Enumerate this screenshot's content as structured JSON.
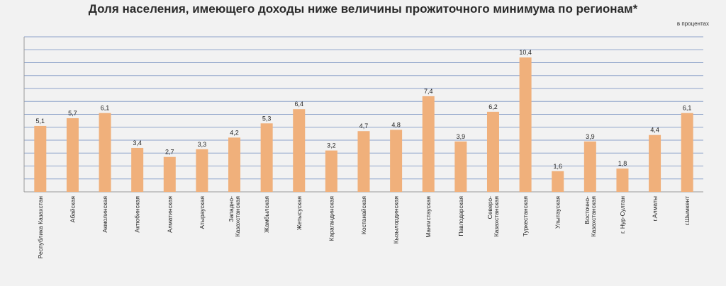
{
  "chart_data": {
    "type": "bar",
    "title": "Доля населения, имеющего доходы ниже величины прожиточного минимума по регионам*",
    "unit_note": "в процентах",
    "categories": [
      "Республика Казахстан",
      "Абайская",
      "Акмолинская",
      "Актюбинская",
      "Алматинская",
      "Атырауская",
      "Западно-Казахстанская",
      "Жамбылская",
      "Жетысуская",
      "Карагандинская",
      "Костанайская",
      "Кызылординская",
      "Мангистауская",
      "Павлодарская",
      "Северо-Казахстанская",
      "Туркестанская",
      "Улытауская",
      "Восточно-Казахстанская",
      "г.Нур-Султан",
      "г.Алматы",
      "г.Шымкент"
    ],
    "values": [
      5.1,
      5.7,
      6.1,
      3.4,
      2.7,
      3.3,
      4.2,
      5.3,
      6.4,
      3.2,
      4.7,
      4.8,
      7.4,
      3.9,
      6.2,
      10.4,
      1.6,
      3.9,
      1.8,
      4.4,
      6.1
    ],
    "value_labels": [
      "5,1",
      "5,7",
      "6,1",
      "3,4",
      "2,7",
      "3,3",
      "4,2",
      "5,3",
      "6,4",
      "3,2",
      "4,7",
      "4,8",
      "7,4",
      "3,9",
      "6,2",
      "10,4",
      "1,6",
      "3,9",
      "1,8",
      "4,4",
      "6,1"
    ],
    "category_labels": [
      [
        "Республика Казахстан"
      ],
      [
        "Абайская"
      ],
      [
        "Акмолинская"
      ],
      [
        "Актюбинская"
      ],
      [
        "Алматинская"
      ],
      [
        "Атырауская"
      ],
      [
        "Западно-",
        "Казахстанская"
      ],
      [
        "Жамбылская"
      ],
      [
        "Жетысуская"
      ],
      [
        "Карагандинская"
      ],
      [
        "Костанайская"
      ],
      [
        "Кызылординская"
      ],
      [
        "Мангистауская"
      ],
      [
        "Павлодарская"
      ],
      [
        "Северо-",
        "Казахстанская"
      ],
      [
        "Туркестанская"
      ],
      [
        "Улытауская"
      ],
      [
        "Восточно-",
        "Казахстанская"
      ],
      [
        "г. Нур-Султан"
      ],
      [
        "г.Алматы"
      ],
      [
        "г.Шымкент"
      ]
    ],
    "ylim": [
      0,
      12
    ],
    "grid": true,
    "xlabel": "",
    "ylabel": "",
    "bar_color": "#f0b07b",
    "grid_color": "#8ea3c9"
  }
}
